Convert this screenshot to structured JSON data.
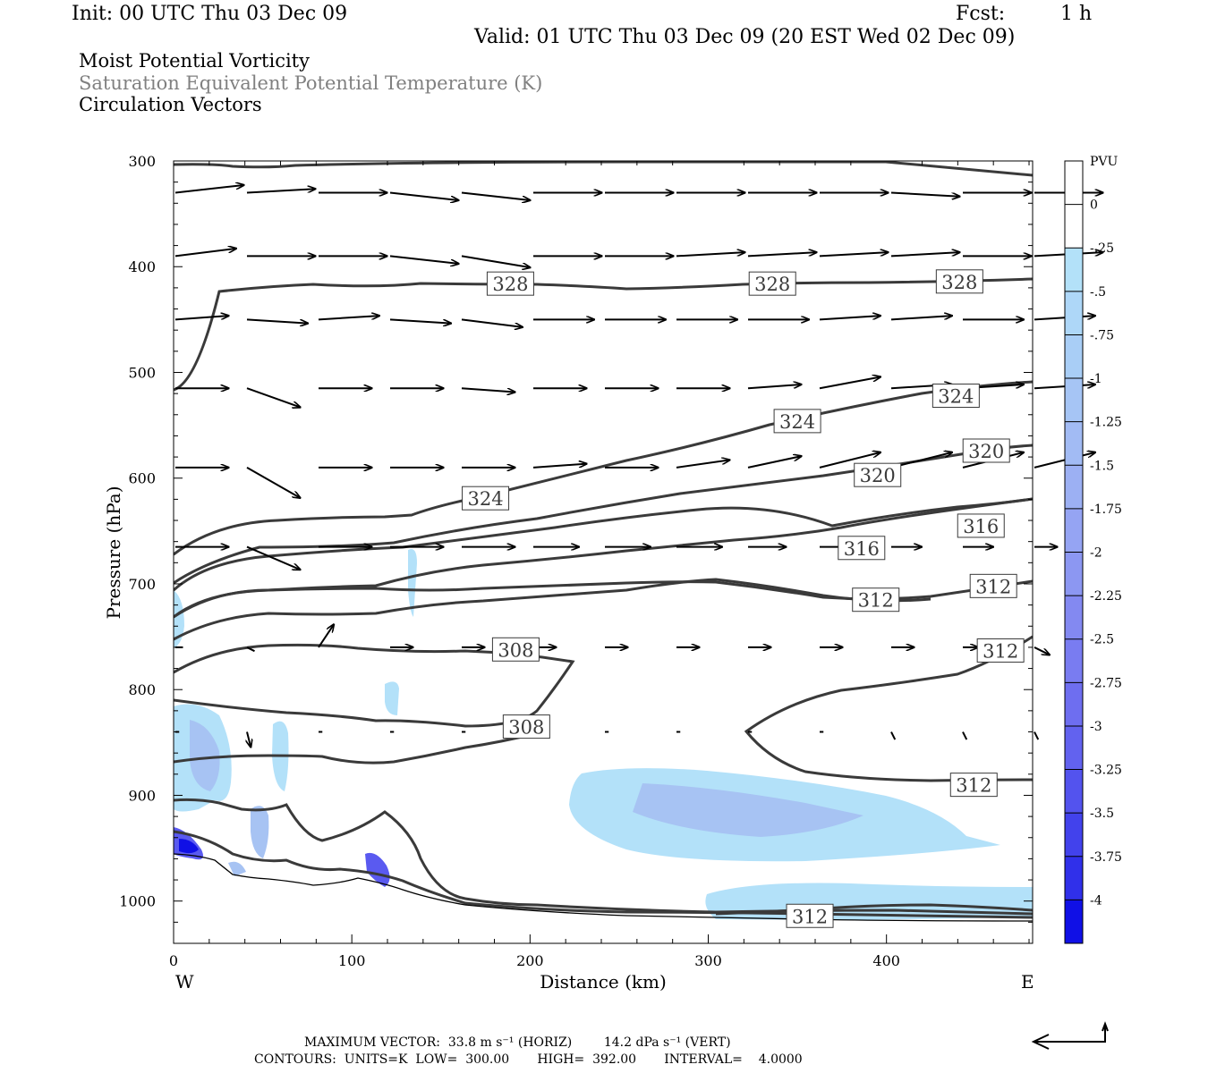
{
  "header": {
    "init": "Init: 00 UTC Thu 03 Dec 09",
    "fcst_label": "Fcst:",
    "fcst_value": "1 h",
    "valid": "Valid: 01 UTC Thu 03 Dec 09 (20 EST Wed 02 Dec 09)"
  },
  "titles": {
    "line1": "Moist Potential Vorticity",
    "line2": "Saturation Equivalent Potential Temperature (K)",
    "line3": "Circulation Vectors"
  },
  "footer": {
    "line1": "MAXIMUM VECTOR:  33.8 m s⁻¹ (HORIZ)        14.2 dPa s⁻¹ (VERT)",
    "line2": "CONTOURS:  UNITS=K  LOW=  300.00       HIGH=  392.00       INTERVAL=    4.0000"
  },
  "colors": {
    "contour": "#3a3a3a",
    "pv_light": "#b3e1f9",
    "pv_mid": "#a7c3f3",
    "pv_strong": "#5a5af0",
    "pv_max": "#1010e6"
  },
  "chart_data": {
    "type": "cross-section",
    "xlabel": "Distance (km)",
    "ylabel": "Pressure (hPa)",
    "xlim": [
      0,
      482
    ],
    "ylim": [
      1040,
      300
    ],
    "x_ticks": [
      "0",
      "100",
      "200",
      "300",
      "400"
    ],
    "y_ticks": [
      "300",
      "400",
      "500",
      "600",
      "700",
      "800",
      "900",
      "1000"
    ],
    "x_end_labels": {
      "left": "W",
      "right": "E"
    },
    "colorbar": {
      "unit": "PVU",
      "labels": [
        "0",
        "-.25",
        "-.5",
        "-.75",
        "-1",
        "-1.25",
        "-1.5",
        "-1.75",
        "-2",
        "-2.25",
        "-2.5",
        "-2.75",
        "-3",
        "-3.25",
        "-3.5",
        "-3.75",
        "-4"
      ],
      "colors": [
        "#ffffff",
        "#b3e1f9",
        "#aed7f8",
        "#a9cef6",
        "#a6c5f5",
        "#a2bbf4",
        "#9cb0f3",
        "#95a4f3",
        "#8c97f2",
        "#8389f1",
        "#797cf1",
        "#6e6ef0",
        "#6262ef",
        "#5353ee",
        "#4242ec",
        "#3030ea",
        "#1010e6"
      ]
    },
    "contour_labels": [
      {
        "value": "328",
        "x": 189,
        "p": 416
      },
      {
        "value": "328",
        "x": 336,
        "p": 416
      },
      {
        "value": "328",
        "x": 441,
        "p": 414
      },
      {
        "value": "324",
        "x": 175,
        "p": 619
      },
      {
        "value": "324",
        "x": 350,
        "p": 546
      },
      {
        "value": "324",
        "x": 439,
        "p": 522
      },
      {
        "value": "320",
        "x": 395,
        "p": 597
      },
      {
        "value": "320",
        "x": 456,
        "p": 574
      },
      {
        "value": "316",
        "x": 386,
        "p": 666
      },
      {
        "value": "316",
        "x": 453,
        "p": 645
      },
      {
        "value": "312",
        "x": 394,
        "p": 715
      },
      {
        "value": "312",
        "x": 460,
        "p": 702
      },
      {
        "value": "312",
        "x": 464,
        "p": 763
      },
      {
        "value": "312",
        "x": 449,
        "p": 890
      },
      {
        "value": "312",
        "x": 357,
        "p": 1014
      },
      {
        "value": "308",
        "x": 192,
        "p": 762
      },
      {
        "value": "308",
        "x": 198,
        "p": 835
      }
    ],
    "wind_vectors": {
      "units": "relative to maximum vector (33.8 m/s horiz, 14.2 dPa/s vert)",
      "rows": [
        {
          "p": 330,
          "u": [
            0.9,
            0.9,
            0.9,
            0.9,
            0.9,
            0.9,
            0.9,
            0.9,
            0.9,
            0.9,
            0.9,
            0.9,
            0.9
          ],
          "w": [
            0.1,
            0.05,
            0,
            -0.1,
            -0.1,
            0,
            0,
            0,
            0,
            0,
            -0.05,
            0,
            0
          ]
        },
        {
          "p": 390,
          "u": [
            0.8,
            0.9,
            0.9,
            0.9,
            0.9,
            0.9,
            0.9,
            0.9,
            0.9,
            0.9,
            0.9,
            0.9,
            0.9
          ],
          "w": [
            0.1,
            0,
            0,
            -0.1,
            -0.15,
            0,
            0,
            0.05,
            0.05,
            0.05,
            0.05,
            0,
            0.05
          ]
        },
        {
          "p": 450,
          "u": [
            0.7,
            0.8,
            0.8,
            0.8,
            0.8,
            0.8,
            0.8,
            0.8,
            0.8,
            0.8,
            0.8,
            0.8,
            0.8
          ],
          "w": [
            0.05,
            -0.05,
            0.05,
            -0.05,
            -0.1,
            0,
            0,
            0,
            0,
            0.05,
            0.05,
            0,
            0.05
          ]
        },
        {
          "p": 515,
          "u": [
            0.7,
            0.7,
            0.7,
            0.7,
            0.7,
            0.7,
            0.7,
            0.7,
            0.7,
            0.8,
            0.8,
            0.8,
            0.8
          ],
          "w": [
            0,
            -0.25,
            0,
            0,
            -0.05,
            0,
            0,
            0,
            0.05,
            0.15,
            0.05,
            0.05,
            0.05
          ]
        },
        {
          "p": 590,
          "u": [
            0.7,
            0.7,
            0.7,
            0.7,
            0.7,
            0.7,
            0.7,
            0.7,
            0.7,
            0.8,
            0.8,
            0.8,
            0.8
          ],
          "w": [
            0,
            -0.4,
            0,
            0,
            0,
            0.05,
            0,
            0.1,
            0.15,
            0.2,
            0.2,
            0.2,
            0.2
          ]
        },
        {
          "p": 665,
          "u": [
            0.7,
            0.7,
            0.7,
            0.7,
            0.7,
            0.6,
            0.6,
            0.6,
            0.5,
            0.5,
            0.4,
            0.4,
            0.3
          ],
          "w": [
            0,
            -0.3,
            0,
            0,
            0,
            0,
            0,
            0,
            0,
            0,
            0,
            0,
            0
          ]
        },
        {
          "p": 760,
          "u": [
            0.1,
            0.1,
            0.2,
            0.3,
            0.3,
            0.3,
            0.3,
            0.3,
            0.3,
            0.3,
            0.3,
            0.2,
            0.2
          ],
          "w": [
            0,
            -0.05,
            0.3,
            0,
            0,
            0,
            0,
            0,
            0,
            0,
            0,
            0,
            -0.1
          ]
        },
        {
          "p": 840,
          "u": [
            0.05,
            0.05,
            0.05,
            0.05,
            0.05,
            0.05,
            0.05,
            0.05,
            0.05,
            0.05,
            0.05,
            0.05,
            0.05
          ],
          "w": [
            0,
            -0.2,
            0,
            0,
            0,
            0,
            0,
            0,
            0,
            0,
            -0.1,
            -0.1,
            -0.1
          ]
        }
      ]
    }
  }
}
